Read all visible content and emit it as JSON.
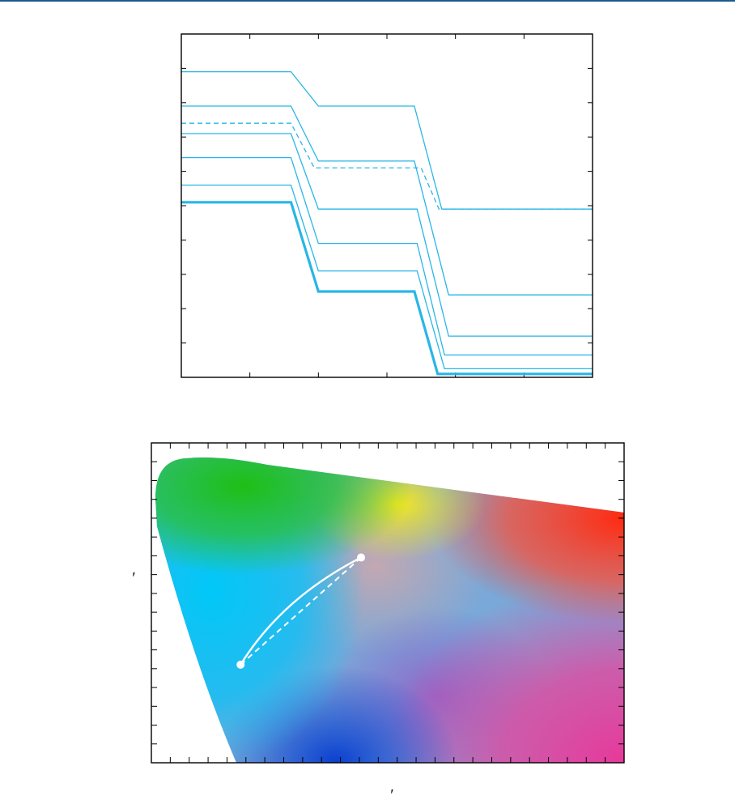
{
  "chart_data": [
    {
      "type": "line",
      "x": [
        0,
        0.4,
        0.6,
        1.3,
        1.6,
        3
      ],
      "xlim": [
        0,
        3
      ],
      "ylim": [
        0,
        10
      ],
      "xticks": [
        0,
        0.5,
        1,
        1.5,
        2,
        2.5,
        3
      ],
      "yticks": [
        0,
        1,
        2,
        3,
        4,
        5,
        6,
        7,
        8,
        9,
        10
      ],
      "grid": false,
      "line_color": "#29b6e6",
      "series": [
        {
          "style": "thin",
          "points": [
            [
              0,
              8.9
            ],
            [
              0.8,
              8.9
            ],
            [
              1.0,
              7.9
            ],
            [
              1.7,
              7.9
            ],
            [
              1.9,
              4.9
            ],
            [
              3,
              4.9
            ]
          ]
        },
        {
          "style": "thin",
          "points": [
            [
              0,
              7.9
            ],
            [
              0.8,
              7.9
            ],
            [
              1.0,
              6.3
            ],
            [
              1.7,
              6.3
            ],
            [
              1.95,
              2.4
            ],
            [
              3,
              2.4
            ]
          ]
        },
        {
          "style": "dashed",
          "points": [
            [
              0,
              7.4
            ],
            [
              0.8,
              7.4
            ],
            [
              0.97,
              6.1
            ],
            [
              1.75,
              6.1
            ],
            [
              1.88,
              4.9
            ],
            [
              3,
              4.9
            ]
          ]
        },
        {
          "style": "thin",
          "points": [
            [
              0,
              7.1
            ],
            [
              0.8,
              7.1
            ],
            [
              1.0,
              4.9
            ],
            [
              1.72,
              4.9
            ],
            [
              1.95,
              1.2
            ],
            [
              3,
              1.2
            ]
          ]
        },
        {
          "style": "thin",
          "points": [
            [
              0,
              6.4
            ],
            [
              0.8,
              6.4
            ],
            [
              1.0,
              3.9
            ],
            [
              1.72,
              3.9
            ],
            [
              1.92,
              0.65
            ],
            [
              3,
              0.65
            ]
          ]
        },
        {
          "style": "thin",
          "points": [
            [
              0,
              5.6
            ],
            [
              0.8,
              5.6
            ],
            [
              1.0,
              3.1
            ],
            [
              1.72,
              3.1
            ],
            [
              1.92,
              0.25
            ],
            [
              3,
              0.25
            ]
          ]
        },
        {
          "style": "thick",
          "points": [
            [
              0,
              5.1
            ],
            [
              0.8,
              5.1
            ],
            [
              1.0,
              2.5
            ],
            [
              1.7,
              2.5
            ],
            [
              1.87,
              0.1
            ],
            [
              3,
              0.1
            ]
          ]
        }
      ]
    },
    {
      "type": "scatter",
      "xlim": [
        0,
        0.62
      ],
      "ylim": [
        0,
        0.6
      ],
      "xlabel": "′",
      "ylabel": "′",
      "background": "chromaticity",
      "points": [
        {
          "x": 0.117,
          "y": 0.184
        },
        {
          "x": 0.275,
          "y": 0.385
        }
      ],
      "curve_solid": [
        [
          0.117,
          0.184
        ],
        [
          0.15,
          0.26
        ],
        [
          0.2,
          0.33
        ],
        [
          0.275,
          0.385
        ]
      ],
      "curve_dashed": [
        [
          0.117,
          0.184
        ],
        [
          0.275,
          0.385
        ]
      ],
      "curve_color": "#ffffff",
      "spectral_colors": {
        "green": "#1fbf14",
        "yellow": "#f5e81c",
        "red": "#ff2a10",
        "cyan": "#00c8f8",
        "blue": "#0a40d0",
        "magenta": "#e8389a",
        "purple": "#9060c8",
        "center": "#c6a8b0"
      }
    }
  ]
}
